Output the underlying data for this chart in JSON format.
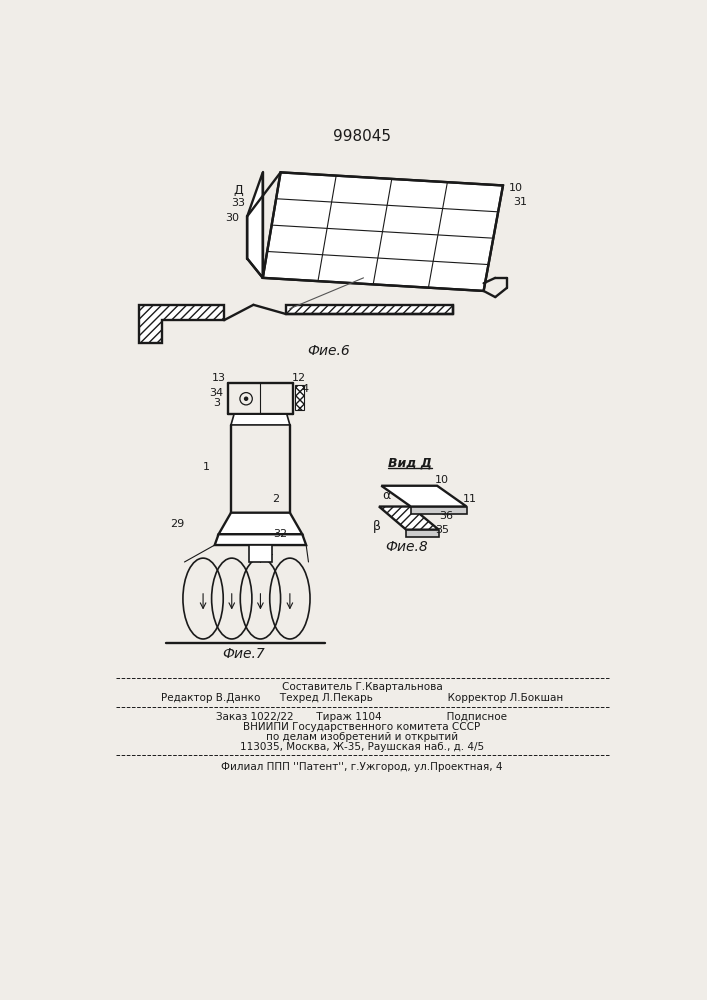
{
  "title": "998045",
  "bg": "#f0ede8",
  "lc": "#1a1a1a",
  "fig6_caption": "Фие.6",
  "fig7_caption": "Фие.7",
  "fig8_caption": "Фие.8",
  "vid_d": "Вид Д",
  "f1": "Составитель Г.Квартальнова",
  "f2": "Редактор В.Данко   Техред Л.Пекарь                   Корректор Л.Бокшан",
  "f3": "Заказ 1022/22      Тираж 1104                Подписное",
  "f4": "ВНИИПИ Государственного комитета СССР",
  "f5": "по делам изобретений и открытий",
  "f6": "113035, Москва, Ж-35, Раушская наб., д. 4/5",
  "f7": "Филиал ППП ''Патент'', г.Ужгород, ул.Проектная, 4"
}
